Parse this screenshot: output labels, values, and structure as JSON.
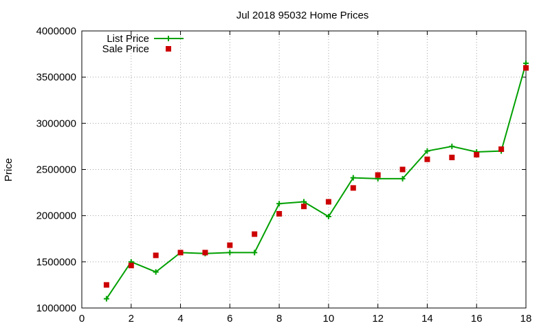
{
  "chart_data": {
    "type": "line",
    "title": "Jul 2018 95032 Home Prices",
    "xlabel": "",
    "ylabel": "Price",
    "xlim": [
      0,
      18
    ],
    "ylim": [
      1000000,
      4000000
    ],
    "x_ticks": [
      "0",
      "2",
      "4",
      "6",
      "8",
      "10",
      "12",
      "14",
      "16",
      "18"
    ],
    "y_ticks": [
      "1000000",
      "1500000",
      "2000000",
      "2500000",
      "3000000",
      "3500000",
      "4000000"
    ],
    "grid": true,
    "legend_position": "top-left",
    "series": [
      {
        "name": "List Price",
        "style": "line-with-plus-markers",
        "color": "#00a000",
        "x": [
          1,
          2,
          3,
          4,
          5,
          6,
          7,
          8,
          9,
          10,
          11,
          12,
          13,
          14,
          15,
          16,
          17,
          18
        ],
        "values": [
          1100000,
          1500000,
          1390000,
          1600000,
          1590000,
          1600000,
          1600000,
          2130000,
          2150000,
          1990000,
          2410000,
          2400000,
          2400000,
          2700000,
          2750000,
          2690000,
          2700000,
          3650000
        ]
      },
      {
        "name": "Sale Price",
        "style": "square-markers",
        "color": "#cc0000",
        "x": [
          1,
          2,
          3,
          4,
          5,
          6,
          7,
          8,
          9,
          10,
          11,
          12,
          13,
          14,
          15,
          16,
          17,
          18
        ],
        "values": [
          1250000,
          1460000,
          1570000,
          1600000,
          1600000,
          1680000,
          1800000,
          2020000,
          2100000,
          2150000,
          2300000,
          2440000,
          2500000,
          2610000,
          2630000,
          2660000,
          2720000,
          3600000
        ]
      }
    ]
  }
}
